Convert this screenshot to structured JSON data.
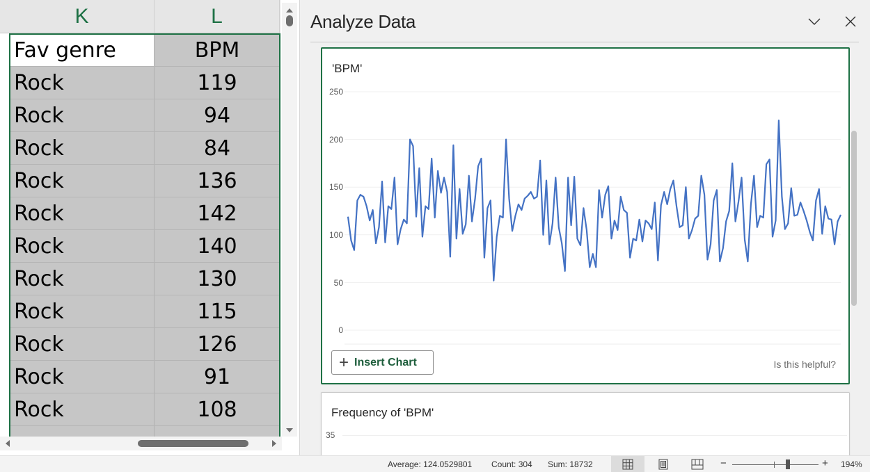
{
  "spreadsheet": {
    "columns": [
      {
        "letter": "K"
      },
      {
        "letter": "L"
      }
    ],
    "header_row": {
      "k": "Fav genre",
      "l": "BPM"
    },
    "rows": [
      {
        "k": "Rock",
        "l": "119"
      },
      {
        "k": "Rock",
        "l": "94"
      },
      {
        "k": "Rock",
        "l": "84"
      },
      {
        "k": "Rock",
        "l": "136"
      },
      {
        "k": "Rock",
        "l": "142"
      },
      {
        "k": "Rock",
        "l": "140"
      },
      {
        "k": "Rock",
        "l": "130"
      },
      {
        "k": "Rock",
        "l": "115"
      },
      {
        "k": "Rock",
        "l": "126"
      },
      {
        "k": "Rock",
        "l": "91"
      },
      {
        "k": "Rock",
        "l": "108"
      },
      {
        "k": "",
        "l": ""
      }
    ],
    "selection_color": "#1e7145"
  },
  "panel": {
    "title": "Analyze Data",
    "collapse_icon": "chevron-down-icon",
    "close_icon": "close-icon",
    "cards": [
      {
        "title": "'BPM'",
        "insert_label": "Insert Chart",
        "insert_icon": "plus-icon",
        "feedback": "Is this helpful?"
      },
      {
        "title": "Frequency of 'BPM'",
        "first_tick": "35"
      }
    ]
  },
  "chart_data": {
    "type": "line",
    "title": "'BPM'",
    "xlabel": "",
    "ylabel": "",
    "ylim": [
      0,
      250
    ],
    "yticks": [
      "250",
      "200",
      "150",
      "100",
      "50",
      "0"
    ],
    "grid": true,
    "legend": "none",
    "line_color": "#4472c4",
    "series": [
      {
        "name": "BPM",
        "values": [
          119,
          94,
          84,
          136,
          142,
          140,
          130,
          115,
          126,
          91,
          108,
          156,
          92,
          130,
          127,
          160,
          90,
          106,
          116,
          112,
          200,
          193,
          119,
          170,
          98,
          130,
          127,
          180,
          118,
          167,
          144,
          160,
          145,
          77,
          194,
          96,
          148,
          101,
          111,
          162,
          114,
          138,
          172,
          180,
          76,
          128,
          136,
          52,
          98,
          120,
          118,
          200,
          138,
          104,
          120,
          132,
          126,
          138,
          141,
          145,
          138,
          140,
          178,
          100,
          157,
          90,
          112,
          160,
          108,
          91,
          62,
          160,
          110,
          161,
          96,
          89,
          128,
          105,
          66,
          80,
          66,
          147,
          118,
          142,
          151,
          96,
          115,
          105,
          140,
          126,
          123,
          76,
          96,
          94,
          116,
          93,
          115,
          112,
          106,
          134,
          73,
          131,
          145,
          132,
          148,
          157,
          130,
          108,
          110,
          150,
          96,
          105,
          117,
          120,
          162,
          142,
          74,
          90,
          136,
          147,
          72,
          86,
          114,
          125,
          175,
          114,
          135,
          160,
          95,
          72,
          132,
          162,
          108,
          120,
          118,
          174,
          179,
          98,
          115,
          220,
          140,
          106,
          112,
          149,
          120,
          121,
          134,
          125,
          115,
          103,
          94,
          136,
          148,
          101,
          130,
          117,
          116,
          90,
          114,
          121
        ]
      }
    ]
  },
  "statusbar": {
    "average": "Average: 124.0529801",
    "count": "Count: 304",
    "sum": "Sum: 18732",
    "views": [
      "normal-view-icon",
      "page-layout-icon",
      "page-break-preview-icon"
    ],
    "zoom_minus": "−",
    "zoom_plus": "+",
    "zoom_level": "194%"
  }
}
